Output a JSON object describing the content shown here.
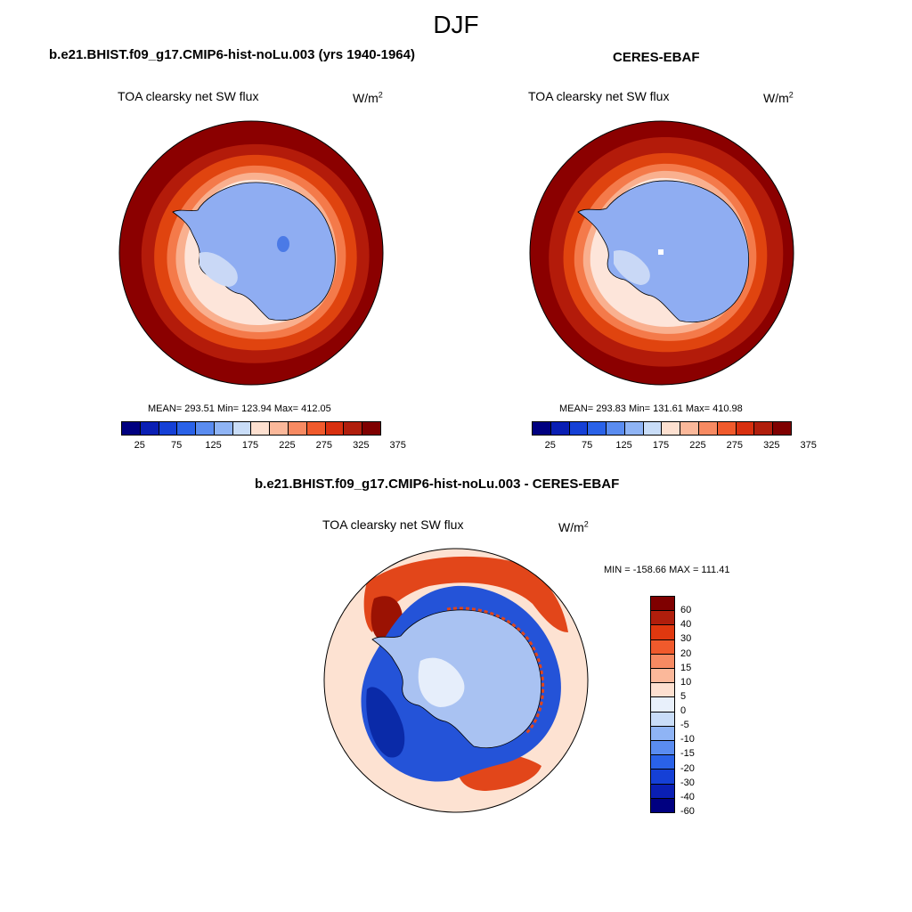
{
  "figure": {
    "title": "DJF"
  },
  "panels": {
    "model": {
      "title": "b.e21.BHIST.f09_g17.CMIP6-hist-noLu.003 (yrs 1940-1964)",
      "variable": "TOA clearsky net SW flux",
      "units_base": "W/m",
      "units_exp": "2",
      "stats": "MEAN= 293.51  Min= 123.94  Max= 412.05"
    },
    "obs": {
      "title": "CERES-EBAF",
      "variable": "TOA clearsky net SW flux",
      "units_base": "W/m",
      "units_exp": "2",
      "stats": "MEAN= 293.83  Min= 131.61  Max= 410.98"
    },
    "diff": {
      "title": "b.e21.BHIST.f09_g17.CMIP6-hist-noLu.003 - CERES-EBAF",
      "variable": "TOA clearsky net SW flux",
      "units_base": "W/m",
      "units_exp": "2",
      "stats": "MIN = -158.66 MAX = 111.41"
    }
  },
  "colorbars": {
    "absolute": {
      "colors": [
        "#000080",
        "#0a1fb4",
        "#1540d6",
        "#2a62e8",
        "#5a8cf0",
        "#8fb4f5",
        "#c9ddf8",
        "#fde0d0",
        "#fbb89a",
        "#f78a62",
        "#f05a2c",
        "#d8300f",
        "#b01e0c",
        "#7f0000"
      ],
      "labels": [
        "25",
        "75",
        "125",
        "175",
        "225",
        "275",
        "325",
        "375"
      ]
    },
    "difference": {
      "colors": [
        "#7f0000",
        "#b01e0c",
        "#e0380f",
        "#f05a2c",
        "#f78a62",
        "#fbb89a",
        "#fde0d0",
        "#e8f0fb",
        "#c9ddf8",
        "#8fb4f5",
        "#5a8cf0",
        "#2a62e8",
        "#1540d6",
        "#0a1fb4",
        "#000080"
      ],
      "labels": [
        "60",
        "40",
        "30",
        "20",
        "15",
        "10",
        "5",
        "0",
        "-5",
        "-10",
        "-15",
        "-20",
        "-30",
        "-40",
        "-60"
      ]
    }
  },
  "map_colors": {
    "ocean_high": "#8b0000",
    "ring_1": "#b31b0a",
    "ring_2": "#e0440f",
    "ring_3": "#f47a4a",
    "ring_4": "#f9b08f",
    "ring_5": "#fde5da",
    "ice": "#8fadf2",
    "ice_light": "#c9d8f6",
    "diff_bg": "#fde2d2",
    "diff_blue": "#2453d8",
    "diff_dark_blue": "#0a2aa8",
    "diff_red": "#e2461a",
    "diff_dark_red": "#9b1203",
    "diff_light_blue": "#a9c2f2",
    "diff_pale": "#e6eefb"
  }
}
